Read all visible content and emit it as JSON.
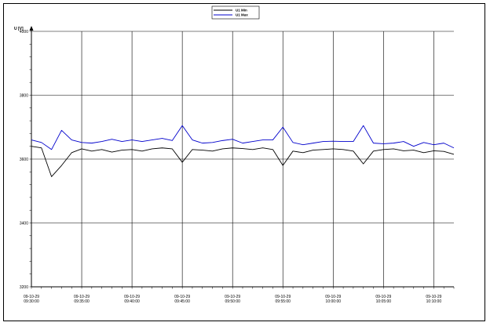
{
  "chart_data": {
    "type": "line",
    "ylabel": "U [V]",
    "ylim": [
      3200,
      4000
    ],
    "yticks": [
      "4000",
      "3800",
      "3600",
      "3400",
      "3200"
    ],
    "xlim": [
      "09-10-29 09:30:00",
      "09-10-29 10:12:00"
    ],
    "xticks": [
      {
        "date": "09-10-29",
        "time": "09:30:00"
      },
      {
        "date": "09-10-29",
        "time": "09:35:00"
      },
      {
        "date": "09-10-29",
        "time": "09:40:00"
      },
      {
        "date": "09-10-29",
        "time": "09:45:00"
      },
      {
        "date": "09-10-29",
        "time": "09:50:00"
      },
      {
        "date": "09-10-29",
        "time": "09:55:00"
      },
      {
        "date": "09-10-29",
        "time": "10:00:00"
      },
      {
        "date": "09-10-29",
        "time": "10:05:00"
      },
      {
        "date": "09-10-29",
        "time": "10:10:00"
      }
    ],
    "grid": true,
    "legend": "top-center",
    "x": [
      "09:30:00",
      "09:31:00",
      "09:32:00",
      "09:33:00",
      "09:34:00",
      "09:35:00",
      "09:36:00",
      "09:37:00",
      "09:38:00",
      "09:39:00",
      "09:40:00",
      "09:41:00",
      "09:42:00",
      "09:43:00",
      "09:44:00",
      "09:45:00",
      "09:46:00",
      "09:47:00",
      "09:48:00",
      "09:49:00",
      "09:50:00",
      "09:51:00",
      "09:52:00",
      "09:53:00",
      "09:54:00",
      "09:55:00",
      "09:56:00",
      "09:57:00",
      "09:58:00",
      "09:59:00",
      "10:00:00",
      "10:01:00",
      "10:02:00",
      "10:03:00",
      "10:04:00",
      "10:05:00",
      "10:06:00",
      "10:07:00",
      "10:08:00",
      "10:09:00",
      "10:10:00",
      "10:11:00",
      "10:12:00"
    ],
    "series": [
      {
        "name": "U1 Min",
        "color": "#000000",
        "values": [
          3640,
          3635,
          3545,
          3580,
          3620,
          3632,
          3625,
          3630,
          3622,
          3628,
          3630,
          3625,
          3632,
          3635,
          3632,
          3590,
          3630,
          3628,
          3625,
          3632,
          3635,
          3633,
          3630,
          3635,
          3630,
          3580,
          3625,
          3620,
          3628,
          3630,
          3632,
          3630,
          3625,
          3585,
          3625,
          3630,
          3632,
          3626,
          3628,
          3620,
          3626,
          3624,
          3615
        ]
      },
      {
        "name": "U1 Max",
        "color": "#0000cc",
        "values": [
          3660,
          3652,
          3630,
          3690,
          3660,
          3652,
          3650,
          3655,
          3662,
          3655,
          3660,
          3655,
          3660,
          3665,
          3658,
          3705,
          3660,
          3650,
          3652,
          3658,
          3662,
          3650,
          3655,
          3660,
          3660,
          3700,
          3652,
          3645,
          3650,
          3655,
          3656,
          3655,
          3655,
          3705,
          3650,
          3648,
          3650,
          3655,
          3640,
          3652,
          3645,
          3650,
          3635
        ]
      }
    ]
  }
}
